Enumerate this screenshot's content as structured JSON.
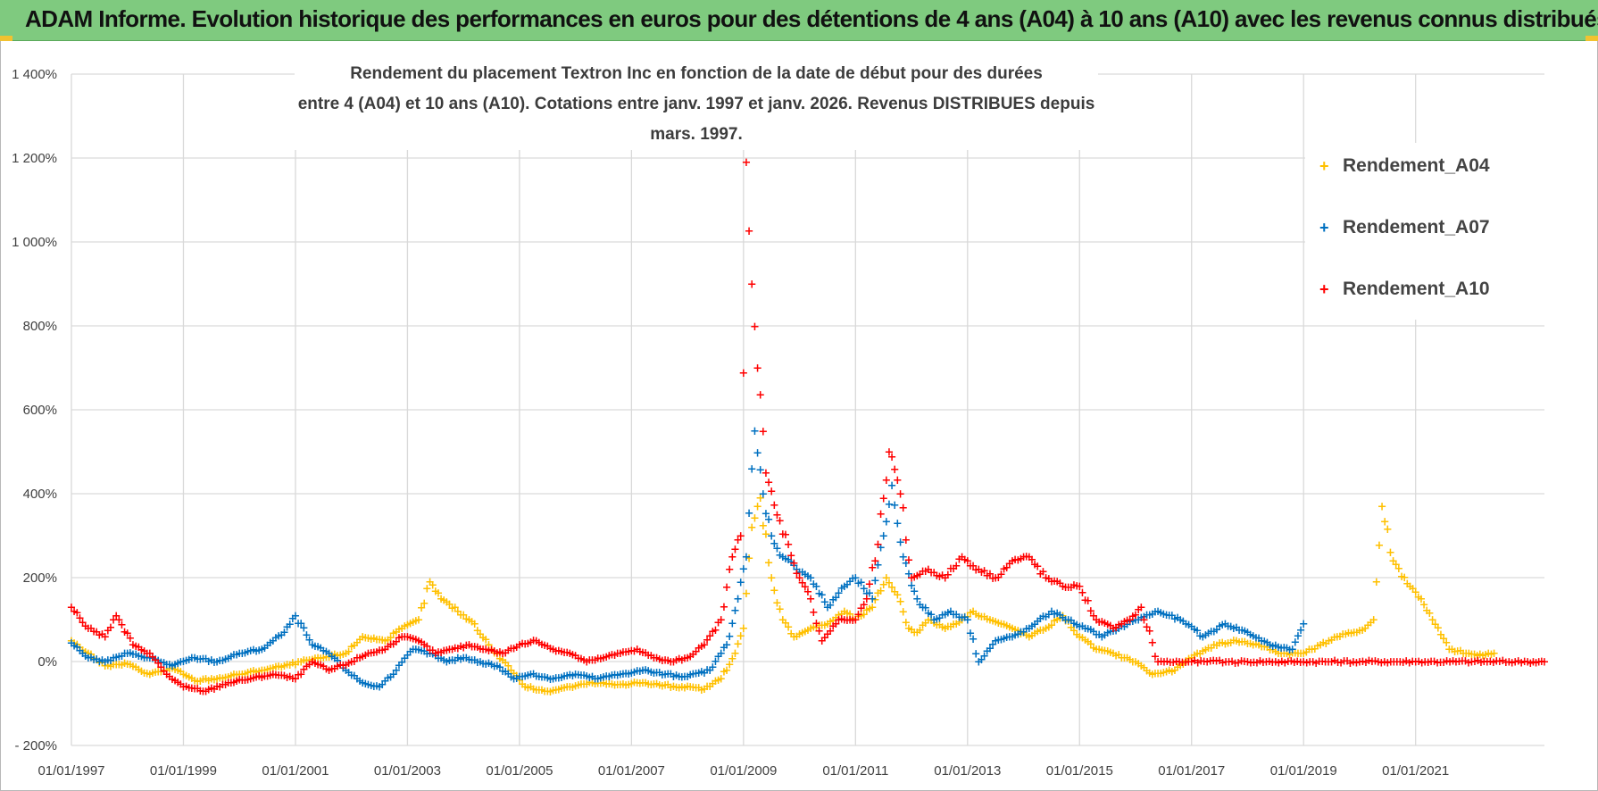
{
  "banner": {
    "title": "ADAM Informe. Evolution historique des performances en euros pour des détentions de 4 ans (A04) à 10 ans (A10) avec les revenus connus distribués"
  },
  "colors": {
    "banner_bg": "#7fca7f",
    "accent": "#f2c230",
    "A04": "#FFC000",
    "A07": "#0070C0",
    "A10": "#FF0000",
    "grid": "#d9d9d9"
  },
  "chart_data": {
    "type": "scatter",
    "title_line1": "Rendement du placement Textron Inc en fonction de la date de début pour des durées",
    "title_line2": "entre 4 (A04) et 10 ans (A10).  Cotations entre janv. 1997 et janv. 2026. Revenus DISTRIBUES depuis mars. 1997.",
    "xlim": [
      1997.0,
      2023.3
    ],
    "ylim": [
      -200,
      1400
    ],
    "y_ticks": [
      -200,
      0,
      200,
      400,
      600,
      800,
      1000,
      1200,
      1400
    ],
    "y_tick_labels": [
      "- 200%",
      "0%",
      "200%",
      "400%",
      "600%",
      "800%",
      "1 000%",
      "1 200%",
      "1 400%"
    ],
    "x_ticks": [
      1997,
      1999,
      2001,
      2003,
      2005,
      2007,
      2009,
      2011,
      2013,
      2015,
      2017,
      2019,
      2021
    ],
    "x_tick_labels": [
      "01/01/1997",
      "01/01/1999",
      "01/01/2001",
      "01/01/2003",
      "01/01/2005",
      "01/01/2007",
      "01/01/2009",
      "01/01/2011",
      "01/01/2013",
      "01/01/2015",
      "01/01/2017",
      "01/01/2019",
      "01/01/2021"
    ],
    "series": [
      {
        "name": "Rendement_A04",
        "color": "#FFC000",
        "x": [
          1997.0,
          1997.3,
          1997.6,
          1998.0,
          1998.4,
          1998.8,
          1999.2,
          1999.6,
          2000.0,
          2000.4,
          2000.8,
          2001.1,
          2001.5,
          2001.9,
          2002.2,
          2002.6,
          2002.9,
          2003.2,
          2003.4,
          2003.6,
          2003.9,
          2004.2,
          2004.5,
          2004.8,
          2005.1,
          2005.5,
          2005.9,
          2006.3,
          2006.7,
          2007.1,
          2007.5,
          2007.9,
          2008.3,
          2008.6,
          2008.85,
          2009.0,
          2009.15,
          2009.3,
          2009.5,
          2009.7,
          2009.9,
          2010.2,
          2010.5,
          2010.8,
          2011.0,
          2011.3,
          2011.55,
          2011.75,
          2011.95,
          2012.1,
          2012.3,
          2012.6,
          2012.9,
          2013.1,
          2013.4,
          2013.8,
          2014.1,
          2014.4,
          2014.7,
          2015.0,
          2015.3,
          2015.6,
          2016.0,
          2016.3,
          2016.7,
          2017.0,
          2017.4,
          2017.8,
          2018.2,
          2018.6,
          2019.0,
          2019.3,
          2019.6,
          2019.9,
          2020.1,
          2020.25,
          2020.4,
          2020.6,
          2020.9,
          2021.1,
          2021.3,
          2021.6,
          2021.9,
          2022.2,
          2022.4
        ],
        "y": [
          50,
          20,
          -10,
          -5,
          -30,
          -15,
          -45,
          -40,
          -30,
          -20,
          -10,
          0,
          10,
          20,
          60,
          50,
          80,
          100,
          190,
          150,
          120,
          90,
          30,
          -10,
          -60,
          -70,
          -60,
          -50,
          -55,
          -50,
          -55,
          -60,
          -65,
          -40,
          20,
          80,
          320,
          390,
          200,
          100,
          60,
          80,
          90,
          120,
          100,
          130,
          200,
          160,
          80,
          70,
          100,
          80,
          100,
          120,
          100,
          80,
          60,
          80,
          110,
          60,
          30,
          20,
          0,
          -30,
          -20,
          10,
          40,
          50,
          40,
          20,
          20,
          40,
          60,
          70,
          80,
          100,
          370,
          240,
          180,
          150,
          100,
          30,
          20,
          15,
          20
        ]
      },
      {
        "name": "Rendement_A07",
        "color": "#0070C0",
        "x": [
          1997.0,
          1997.3,
          1997.6,
          1998.0,
          1998.4,
          1998.8,
          1999.2,
          1999.6,
          2000.0,
          2000.4,
          2000.8,
          2001.0,
          2001.3,
          2001.6,
          2001.9,
          2002.2,
          2002.5,
          2002.8,
          2003.1,
          2003.4,
          2003.7,
          2004.0,
          2004.3,
          2004.6,
          2004.9,
          2005.2,
          2005.6,
          2006.0,
          2006.4,
          2006.8,
          2007.2,
          2007.6,
          2008.0,
          2008.4,
          2008.7,
          2008.9,
          2009.05,
          2009.2,
          2009.35,
          2009.5,
          2009.7,
          2009.9,
          2010.2,
          2010.5,
          2010.8,
          2011.0,
          2011.3,
          2011.5,
          2011.65,
          2011.85,
          2012.1,
          2012.4,
          2012.7,
          2013.0,
          2013.2,
          2013.5,
          2013.8,
          2014.1,
          2014.5,
          2014.8,
          2015.1,
          2015.4,
          2015.7,
          2016.0,
          2016.4,
          2016.8,
          2017.2,
          2017.6,
          2018.0,
          2018.4,
          2018.8,
          2019.0
        ],
        "y": [
          45,
          10,
          0,
          20,
          10,
          -10,
          10,
          0,
          20,
          30,
          70,
          110,
          40,
          20,
          -20,
          -50,
          -60,
          -20,
          30,
          20,
          0,
          10,
          0,
          -10,
          -40,
          -30,
          -40,
          -30,
          -40,
          -30,
          -20,
          -30,
          -35,
          -20,
          40,
          150,
          250,
          550,
          400,
          300,
          250,
          230,
          200,
          130,
          180,
          200,
          150,
          300,
          420,
          250,
          150,
          100,
          120,
          100,
          0,
          50,
          60,
          80,
          120,
          100,
          80,
          60,
          80,
          100,
          120,
          100,
          60,
          90,
          70,
          40,
          30,
          90
        ]
      },
      {
        "name": "Rendement_A10",
        "color": "#FF0000",
        "x": [
          1997.0,
          1997.3,
          1997.6,
          1997.8,
          1998.1,
          1998.4,
          1998.7,
          1999.0,
          1999.4,
          1999.8,
          2000.2,
          2000.6,
          2001.0,
          2001.3,
          2001.6,
          2002.0,
          2002.3,
          2002.6,
          2002.9,
          2003.2,
          2003.5,
          2003.8,
          2004.1,
          2004.4,
          2004.7,
          2005.0,
          2005.3,
          2005.6,
          2005.9,
          2006.2,
          2006.5,
          2006.8,
          2007.1,
          2007.4,
          2007.7,
          2008.0,
          2008.3,
          2008.6,
          2008.8,
          2008.95,
          2009.05,
          2009.15,
          2009.25,
          2009.4,
          2009.6,
          2009.8,
          2010.0,
          2010.2,
          2010.4,
          2010.7,
          2011.0,
          2011.2,
          2011.4,
          2011.6,
          2011.8,
          2012.0,
          2012.3,
          2012.6,
          2012.9,
          2013.2,
          2013.5,
          2013.8,
          2014.1,
          2014.4,
          2014.7,
          2015.0,
          2015.3,
          2015.6,
          2015.9,
          2016.1,
          2016.4,
          2017.0,
          2018.0,
          2019.0,
          2020.0,
          2021.0,
          2022.0,
          2023.0,
          2023.3
        ],
        "y": [
          130,
          80,
          60,
          110,
          40,
          20,
          -30,
          -60,
          -70,
          -50,
          -40,
          -30,
          -40,
          0,
          -20,
          0,
          20,
          30,
          60,
          50,
          20,
          30,
          40,
          30,
          20,
          40,
          50,
          30,
          20,
          0,
          10,
          20,
          30,
          10,
          0,
          10,
          40,
          100,
          250,
          300,
          1190,
          900,
          700,
          450,
          350,
          280,
          200,
          150,
          50,
          100,
          100,
          150,
          280,
          500,
          400,
          200,
          220,
          200,
          250,
          220,
          200,
          240,
          250,
          200,
          180,
          180,
          100,
          80,
          100,
          130,
          0,
          0,
          0,
          0,
          0,
          0,
          0,
          0,
          0
        ]
      }
    ]
  }
}
